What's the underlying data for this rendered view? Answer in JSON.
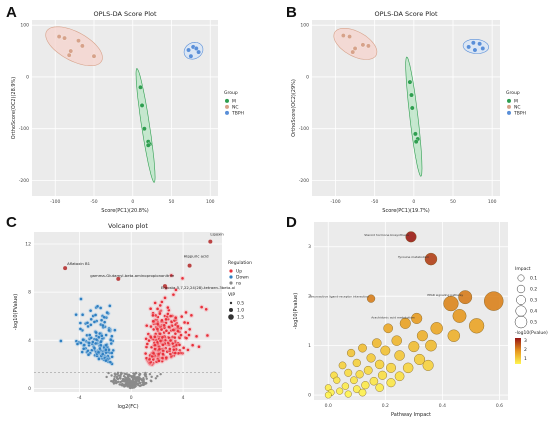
{
  "panel_labels": [
    "A",
    "B",
    "C",
    "D"
  ],
  "chart_data": [
    {
      "type": "scatter",
      "title": "OPLS-DA Score Plot",
      "xlabel": "Score(PC1)(20.8%)",
      "ylabel": "OrthoScore(OC2)(28.9%)",
      "xlim": [
        -130,
        110
      ],
      "ylim": [
        -230,
        110
      ],
      "xticks": [
        -100,
        -50,
        0,
        50,
        100
      ],
      "yticks": [
        -200,
        -100,
        0,
        100
      ],
      "grid": true,
      "legend_title": "Group",
      "legend_position": "right",
      "series": [
        {
          "name": "M",
          "color": "#2e9e4f",
          "ellipse_fill": "#b8e6c4",
          "points": [
            [
              10,
              -20
            ],
            [
              12,
              -55
            ],
            [
              15,
              -100
            ],
            [
              20,
              -125
            ],
            [
              22,
              -130
            ],
            [
              20,
              -132
            ]
          ]
        },
        {
          "name": "NC",
          "color": "#d7a28a",
          "ellipse_fill": "#f6d3cc",
          "points": [
            [
              -95,
              78
            ],
            [
              -88,
              75
            ],
            [
              -80,
              50
            ],
            [
              -82,
              42
            ],
            [
              -70,
              70
            ],
            [
              -65,
              60
            ],
            [
              -50,
              40
            ]
          ]
        },
        {
          "name": "TBPH",
          "color": "#5a8fd8",
          "ellipse_fill": "#d6e4f7",
          "points": [
            [
              72,
              52
            ],
            [
              78,
              58
            ],
            [
              82,
              55
            ],
            [
              85,
              48
            ],
            [
              75,
              40
            ]
          ]
        }
      ]
    },
    {
      "type": "scatter",
      "title": "OPLS-DA Score Plot",
      "xlabel": "Score(PC1)(19.7%)",
      "ylabel": "OrthoScore(OC2)(29%)",
      "xlim": [
        -130,
        110
      ],
      "ylim": [
        -230,
        110
      ],
      "xticks": [
        -100,
        -50,
        0,
        50,
        100
      ],
      "yticks": [
        -200,
        -100,
        0,
        100
      ],
      "grid": true,
      "legend_title": "Group",
      "legend_position": "right",
      "series": [
        {
          "name": "M",
          "color": "#2e9e4f",
          "ellipse_fill": "#b8e6c4",
          "points": [
            [
              -5,
              -10
            ],
            [
              -3,
              -35
            ],
            [
              -2,
              -60
            ],
            [
              2,
              -110
            ],
            [
              5,
              -120
            ],
            [
              3,
              -125
            ]
          ]
        },
        {
          "name": "NC",
          "color": "#d7a28a",
          "ellipse_fill": "#f6d3cc",
          "points": [
            [
              -90,
              80
            ],
            [
              -82,
              78
            ],
            [
              -75,
              55
            ],
            [
              -78,
              48
            ],
            [
              -65,
              62
            ],
            [
              -58,
              60
            ]
          ]
        },
        {
          "name": "TBPH",
          "color": "#5a8fd8",
          "ellipse_fill": "#d6e4f7",
          "points": [
            [
              70,
              58
            ],
            [
              76,
              66
            ],
            [
              84,
              64
            ],
            [
              88,
              55
            ],
            [
              78,
              52
            ]
          ]
        }
      ]
    },
    {
      "type": "scatter",
      "title": "Volcano plot",
      "xlabel": "log2(FC)",
      "ylabel": "-log10(PValue)",
      "xlim": [
        -7.5,
        7
      ],
      "ylim": [
        -0.3,
        13
      ],
      "xticks": [
        -4,
        0,
        4
      ],
      "yticks": [
        0,
        4,
        8,
        12
      ],
      "threshold_y": 1.3,
      "grid": true,
      "legend_title": "Regulation",
      "legend": [
        "Up",
        "Down",
        "ns"
      ],
      "vip_legend_title": "VIP",
      "vip_legend": [
        "0.5",
        "1.0",
        "1.5"
      ],
      "legend_position": "right",
      "colors": {
        "Up": "#e8303a",
        "Down": "#2f7fc1",
        "ns": "#8a8a8a",
        "Up_halo": "#f6b2b8",
        "Down_halo": "#a6cce8"
      },
      "annotations": [
        {
          "text": "Lipoxin",
          "x": 6.1,
          "y": 12.2
        },
        {
          "text": "Hippuric acid",
          "x": 4.5,
          "y": 10.2
        },
        {
          "text": "Aflatoxin B1",
          "x": -5.1,
          "y": 10.0
        },
        {
          "text": "gamma-Glutamyl-beta-aminopropiononitrile",
          "x": -1.0,
          "y": 9.1
        },
        {
          "text": "Ergosta-5,7,22,24(28)-tetraen-3beta-ol",
          "x": 2.6,
          "y": 8.5
        }
      ]
    },
    {
      "type": "scatter",
      "xlabel": "Pathway Impact",
      "ylabel": "-log10(Pvalue)",
      "xlim": [
        -0.05,
        0.63
      ],
      "ylim": [
        -0.1,
        3.5
      ],
      "xticks": [
        0.0,
        0.2,
        0.4,
        0.6
      ],
      "xtick_labels": [
        "0.0",
        "0.2",
        "0.4",
        "0.6"
      ],
      "yticks": [
        0,
        1,
        2,
        3
      ],
      "grid": true,
      "legend_size_title": "Impact",
      "legend_sizes": [
        "0.1",
        "0.2",
        "0.3",
        "0.4",
        "0.5"
      ],
      "legend_color_title": "-log10(Pvalue)",
      "legend_color_ticks": [
        "3",
        "2",
        "1"
      ],
      "legend_position": "right",
      "annotations": [
        {
          "text": "Steroid hormone biosynthesis",
          "x": 0.29,
          "y": 3.2
        },
        {
          "text": "Tyrosine metabolism",
          "x": 0.36,
          "y": 2.75
        },
        {
          "text": "Neuroactive ligand-receptor interaction",
          "x": 0.15,
          "y": 1.95
        },
        {
          "text": "Arachidonic acid metabolism",
          "x": 0.31,
          "y": 1.55
        },
        {
          "text": "PPAR signaling pathway",
          "x": 0.48,
          "y": 1.98
        }
      ],
      "points": [
        {
          "impact": 0.29,
          "p": 3.2,
          "size": 0.2
        },
        {
          "impact": 0.36,
          "p": 2.75,
          "size": 0.25
        },
        {
          "impact": 0.15,
          "p": 1.95,
          "size": 0.1
        },
        {
          "impact": 0.31,
          "p": 1.55,
          "size": 0.2
        },
        {
          "impact": 0.48,
          "p": 1.98,
          "size": 0.3
        },
        {
          "impact": 0.58,
          "p": 1.9,
          "size": 0.5
        },
        {
          "impact": 0.43,
          "p": 1.85,
          "size": 0.35
        },
        {
          "impact": 0.46,
          "p": 1.6,
          "size": 0.3
        },
        {
          "impact": 0.52,
          "p": 1.4,
          "size": 0.35
        },
        {
          "impact": 0.38,
          "p": 1.35,
          "size": 0.25
        },
        {
          "impact": 0.27,
          "p": 1.45,
          "size": 0.2
        },
        {
          "impact": 0.21,
          "p": 1.35,
          "size": 0.15
        },
        {
          "impact": 0.33,
          "p": 1.2,
          "size": 0.2
        },
        {
          "impact": 0.44,
          "p": 1.2,
          "size": 0.25
        },
        {
          "impact": 0.24,
          "p": 1.1,
          "size": 0.18
        },
        {
          "impact": 0.17,
          "p": 1.05,
          "size": 0.15
        },
        {
          "impact": 0.12,
          "p": 0.95,
          "size": 0.12
        },
        {
          "impact": 0.3,
          "p": 0.98,
          "size": 0.2
        },
        {
          "impact": 0.36,
          "p": 1.0,
          "size": 0.22
        },
        {
          "impact": 0.2,
          "p": 0.9,
          "size": 0.16
        },
        {
          "impact": 0.08,
          "p": 0.85,
          "size": 0.1
        },
        {
          "impact": 0.25,
          "p": 0.8,
          "size": 0.18
        },
        {
          "impact": 0.15,
          "p": 0.75,
          "size": 0.13
        },
        {
          "impact": 0.32,
          "p": 0.72,
          "size": 0.2
        },
        {
          "impact": 0.1,
          "p": 0.65,
          "size": 0.1
        },
        {
          "impact": 0.05,
          "p": 0.6,
          "size": 0.08
        },
        {
          "impact": 0.18,
          "p": 0.62,
          "size": 0.14
        },
        {
          "impact": 0.22,
          "p": 0.55,
          "size": 0.16
        },
        {
          "impact": 0.14,
          "p": 0.5,
          "size": 0.12
        },
        {
          "impact": 0.28,
          "p": 0.55,
          "size": 0.18
        },
        {
          "impact": 0.35,
          "p": 0.6,
          "size": 0.2
        },
        {
          "impact": 0.07,
          "p": 0.45,
          "size": 0.09
        },
        {
          "impact": 0.02,
          "p": 0.4,
          "size": 0.07
        },
        {
          "impact": 0.11,
          "p": 0.42,
          "size": 0.1
        },
        {
          "impact": 0.19,
          "p": 0.4,
          "size": 0.13
        },
        {
          "impact": 0.25,
          "p": 0.38,
          "size": 0.15
        },
        {
          "impact": 0.03,
          "p": 0.3,
          "size": 0.06
        },
        {
          "impact": 0.09,
          "p": 0.3,
          "size": 0.08
        },
        {
          "impact": 0.16,
          "p": 0.28,
          "size": 0.11
        },
        {
          "impact": 0.22,
          "p": 0.25,
          "size": 0.13
        },
        {
          "impact": 0.13,
          "p": 0.2,
          "size": 0.1
        },
        {
          "impact": 0.06,
          "p": 0.18,
          "size": 0.07
        },
        {
          "impact": 0.0,
          "p": 0.15,
          "size": 0.05
        },
        {
          "impact": 0.1,
          "p": 0.12,
          "size": 0.08
        },
        {
          "impact": 0.18,
          "p": 0.15,
          "size": 0.11
        },
        {
          "impact": 0.04,
          "p": 0.08,
          "size": 0.06
        },
        {
          "impact": 0.01,
          "p": 0.05,
          "size": 0.05
        },
        {
          "impact": 0.12,
          "p": 0.05,
          "size": 0.08
        },
        {
          "impact": 0.07,
          "p": 0.02,
          "size": 0.06
        },
        {
          "impact": 0.0,
          "p": 0.0,
          "size": 0.05
        }
      ]
    }
  ]
}
